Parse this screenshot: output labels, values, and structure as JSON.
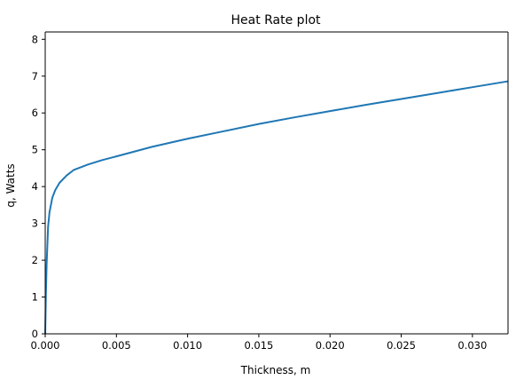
{
  "chart_data": {
    "type": "line",
    "title": "Heat Rate plot",
    "xlabel": "Thickness, m",
    "ylabel": "q, Watts",
    "xlim": [
      0,
      0.0325
    ],
    "ylim": [
      0,
      8.2
    ],
    "x_ticks": [
      "0.000",
      "0.005",
      "0.010",
      "0.015",
      "0.020",
      "0.025",
      "0.030"
    ],
    "y_ticks": [
      "0",
      "1",
      "2",
      "3",
      "4",
      "5",
      "6",
      "7",
      "8"
    ],
    "grid": false,
    "legend": "none",
    "series": [
      {
        "color": "#1f77b4",
        "x": [
          0,
          5e-05,
          0.0001,
          0.0002,
          0.0003,
          0.0005,
          0.0007,
          0.001,
          0.0015,
          0.002,
          0.003,
          0.004,
          0.005,
          0.0075,
          0.01,
          0.0125,
          0.015,
          0.0175,
          0.02,
          0.0225,
          0.025,
          0.0275,
          0.03,
          0.0325
        ],
        "y": [
          0.0,
          1.1,
          1.9,
          2.9,
          3.3,
          3.7,
          3.9,
          4.1,
          4.3,
          4.45,
          4.6,
          4.72,
          4.82,
          5.08,
          5.3,
          5.5,
          5.7,
          5.88,
          6.05,
          6.22,
          6.38,
          6.54,
          6.7,
          6.86
        ]
      }
    ]
  }
}
